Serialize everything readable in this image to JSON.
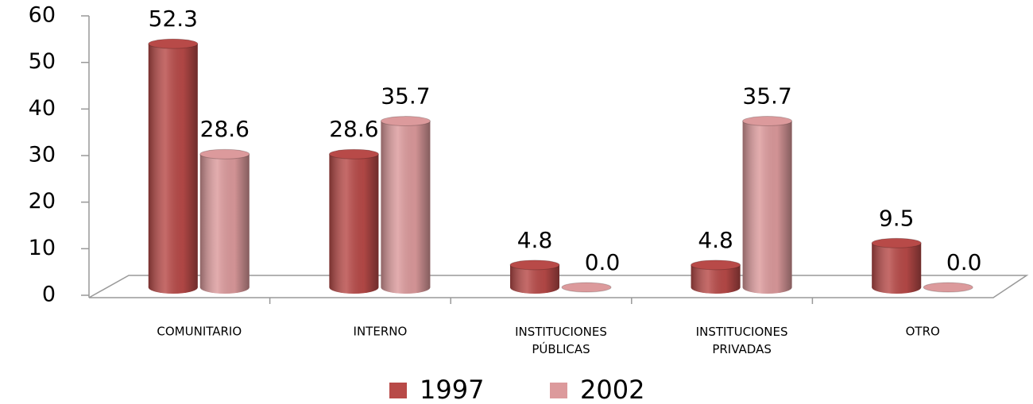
{
  "chart_data": {
    "type": "bar",
    "categories": [
      "COMUNITARIO",
      "INTERNO",
      "INSTITUCIONES PÚBLICAS",
      "INSTITUCIONES PRIVADAS",
      "OTRO"
    ],
    "series": [
      {
        "name": "1997",
        "color": "#b84a48",
        "values": [
          52.3,
          28.6,
          4.8,
          4.8,
          9.5
        ]
      },
      {
        "name": "2002",
        "color": "#dc9a9c",
        "values": [
          28.6,
          35.7,
          0,
          35.7,
          0
        ],
        "value_labels": [
          "28.6",
          "35.7",
          "0.0",
          "35.7",
          "0.0"
        ]
      }
    ],
    "ylim": [
      0,
      60
    ],
    "yticks": [
      0,
      10,
      20,
      30,
      40,
      50,
      60
    ]
  }
}
